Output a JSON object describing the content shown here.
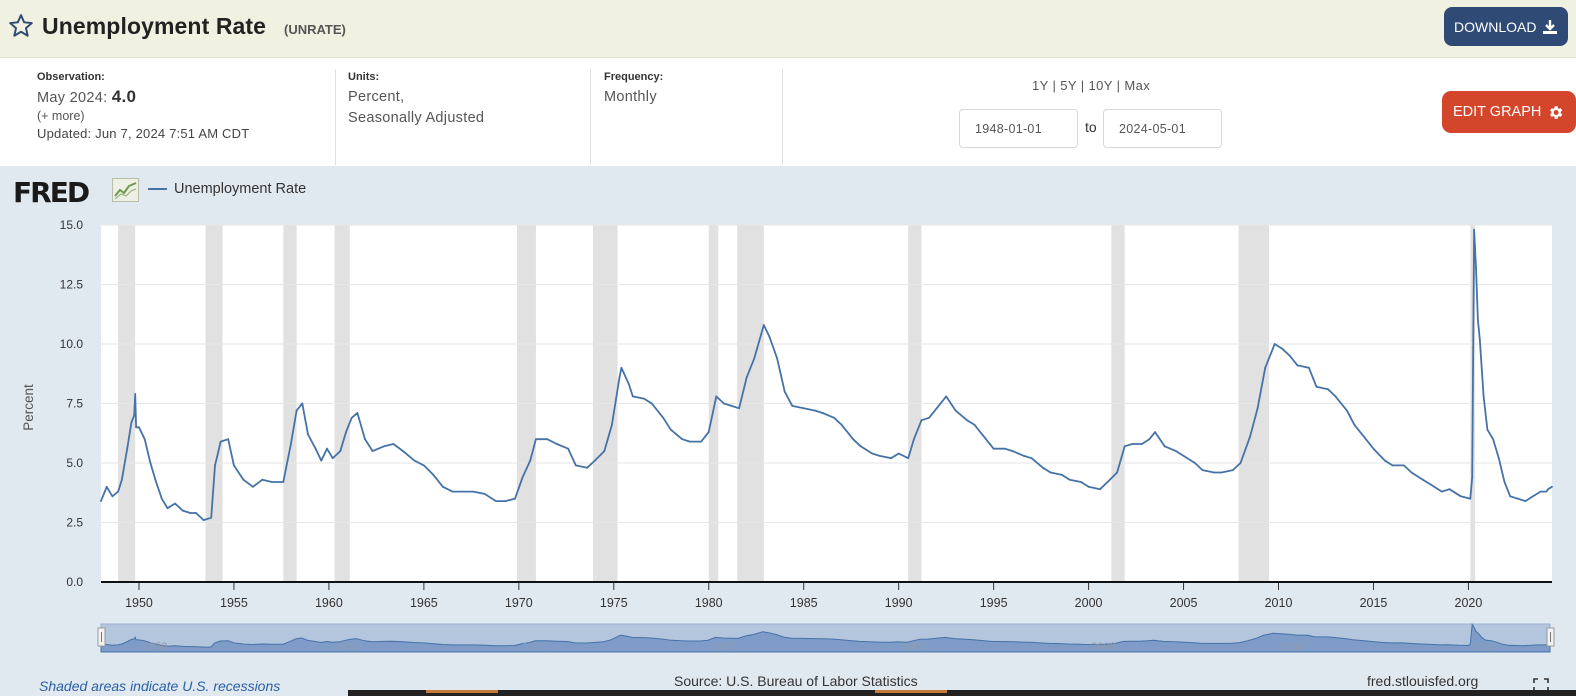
{
  "header": {
    "title": "Unemployment Rate",
    "series_id": "(UNRATE)",
    "download_label": "DOWNLOAD"
  },
  "meta": {
    "observation_label": "Observation:",
    "observation_date": "May 2024:",
    "observation_value": "4.0",
    "more_label": "(+ more)",
    "updated": "Updated: Jun 7, 2024 7:51 AM CDT",
    "units_label": "Units:",
    "units_line1": "Percent,",
    "units_line2": "Seasonally Adjusted",
    "frequency_label": "Frequency:",
    "frequency_value": "Monthly",
    "range_links": "1Y | 5Y | 10Y | Max",
    "date_from": "1948-01-01",
    "date_to_sep": "to",
    "date_to": "2024-05-01",
    "edit_label": "EDIT GRAPH"
  },
  "panel": {
    "logo": "FRED",
    "recession_note": "Shaded areas indicate U.S. recessions",
    "source": "Source: U.S. Bureau of Labor Statistics",
    "site": "fred.stlouisfed.org"
  },
  "colors": {
    "line": "#4572a7",
    "recession": "#e1e1e1",
    "panel_bg": "#e1e9f0",
    "download": "#2f4a75",
    "edit": "#d3462c"
  },
  "chart_data": {
    "type": "line",
    "title": "",
    "xlabel": "",
    "ylabel": "Percent",
    "ylim": [
      0,
      15
    ],
    "xlim": [
      1948,
      2024.4
    ],
    "yticks": [
      "0.0",
      "2.5",
      "5.0",
      "7.5",
      "10.0",
      "12.5",
      "15.0"
    ],
    "xticks": [
      "1950",
      "1955",
      "1960",
      "1965",
      "1970",
      "1975",
      "1980",
      "1985",
      "1990",
      "1995",
      "2000",
      "2005",
      "2010",
      "2015",
      "2020"
    ],
    "grid": true,
    "legend": "top-left",
    "recessions": [
      [
        1948.9,
        1949.8
      ],
      [
        1953.5,
        1954.4
      ],
      [
        1957.6,
        1958.3
      ],
      [
        1960.3,
        1961.1
      ],
      [
        1969.9,
        1970.9
      ],
      [
        1973.9,
        1975.2
      ],
      [
        1980.0,
        1980.5
      ],
      [
        1981.5,
        1982.9
      ],
      [
        1990.5,
        1991.2
      ],
      [
        2001.2,
        2001.9
      ],
      [
        2007.9,
        2009.5
      ],
      [
        2020.1,
        2020.35
      ]
    ],
    "series": [
      {
        "name": "Unemployment Rate",
        "points": [
          [
            1948.0,
            3.4
          ],
          [
            1948.3,
            4.0
          ],
          [
            1948.6,
            3.6
          ],
          [
            1948.9,
            3.8
          ],
          [
            1949.1,
            4.3
          ],
          [
            1949.4,
            5.7
          ],
          [
            1949.6,
            6.7
          ],
          [
            1949.75,
            7.0
          ],
          [
            1949.8,
            7.9
          ],
          [
            1949.85,
            6.5
          ],
          [
            1950.0,
            6.5
          ],
          [
            1950.3,
            6.0
          ],
          [
            1950.6,
            5.0
          ],
          [
            1950.9,
            4.2
          ],
          [
            1951.2,
            3.5
          ],
          [
            1951.5,
            3.1
          ],
          [
            1951.9,
            3.3
          ],
          [
            1952.3,
            3.0
          ],
          [
            1952.7,
            2.9
          ],
          [
            1953.0,
            2.9
          ],
          [
            1953.4,
            2.6
          ],
          [
            1953.8,
            2.7
          ],
          [
            1954.0,
            4.9
          ],
          [
            1954.3,
            5.9
          ],
          [
            1954.7,
            6.0
          ],
          [
            1955.0,
            4.9
          ],
          [
            1955.5,
            4.3
          ],
          [
            1956.0,
            4.0
          ],
          [
            1956.5,
            4.3
          ],
          [
            1957.0,
            4.2
          ],
          [
            1957.6,
            4.2
          ],
          [
            1958.0,
            5.8
          ],
          [
            1958.3,
            7.2
          ],
          [
            1958.6,
            7.5
          ],
          [
            1958.9,
            6.2
          ],
          [
            1959.3,
            5.6
          ],
          [
            1959.6,
            5.1
          ],
          [
            1959.9,
            5.6
          ],
          [
            1960.2,
            5.2
          ],
          [
            1960.6,
            5.5
          ],
          [
            1960.9,
            6.3
          ],
          [
            1961.2,
            6.9
          ],
          [
            1961.5,
            7.1
          ],
          [
            1961.9,
            6.0
          ],
          [
            1962.3,
            5.5
          ],
          [
            1962.9,
            5.7
          ],
          [
            1963.4,
            5.8
          ],
          [
            1963.9,
            5.5
          ],
          [
            1964.5,
            5.1
          ],
          [
            1965.0,
            4.9
          ],
          [
            1965.5,
            4.5
          ],
          [
            1966.0,
            4.0
          ],
          [
            1966.5,
            3.8
          ],
          [
            1967.0,
            3.8
          ],
          [
            1967.6,
            3.8
          ],
          [
            1968.2,
            3.7
          ],
          [
            1968.8,
            3.4
          ],
          [
            1969.3,
            3.4
          ],
          [
            1969.8,
            3.5
          ],
          [
            1970.2,
            4.4
          ],
          [
            1970.6,
            5.1
          ],
          [
            1970.9,
            6.0
          ],
          [
            1971.5,
            6.0
          ],
          [
            1972.0,
            5.8
          ],
          [
            1972.6,
            5.6
          ],
          [
            1973.0,
            4.9
          ],
          [
            1973.6,
            4.8
          ],
          [
            1974.0,
            5.1
          ],
          [
            1974.5,
            5.5
          ],
          [
            1974.9,
            6.6
          ],
          [
            1975.3,
            8.6
          ],
          [
            1975.4,
            9.0
          ],
          [
            1975.8,
            8.3
          ],
          [
            1976.0,
            7.8
          ],
          [
            1976.6,
            7.7
          ],
          [
            1977.0,
            7.5
          ],
          [
            1977.6,
            6.9
          ],
          [
            1978.0,
            6.4
          ],
          [
            1978.6,
            6.0
          ],
          [
            1979.0,
            5.9
          ],
          [
            1979.6,
            5.9
          ],
          [
            1980.0,
            6.3
          ],
          [
            1980.4,
            7.8
          ],
          [
            1980.8,
            7.5
          ],
          [
            1981.2,
            7.4
          ],
          [
            1981.6,
            7.3
          ],
          [
            1982.0,
            8.6
          ],
          [
            1982.4,
            9.4
          ],
          [
            1982.9,
            10.8
          ],
          [
            1983.2,
            10.3
          ],
          [
            1983.6,
            9.4
          ],
          [
            1984.0,
            8.0
          ],
          [
            1984.4,
            7.4
          ],
          [
            1985.0,
            7.3
          ],
          [
            1985.6,
            7.2
          ],
          [
            1986.0,
            7.1
          ],
          [
            1986.6,
            6.9
          ],
          [
            1987.0,
            6.6
          ],
          [
            1987.6,
            6.0
          ],
          [
            1988.0,
            5.7
          ],
          [
            1988.6,
            5.4
          ],
          [
            1989.0,
            5.3
          ],
          [
            1989.6,
            5.2
          ],
          [
            1990.0,
            5.4
          ],
          [
            1990.5,
            5.2
          ],
          [
            1990.8,
            6.0
          ],
          [
            1991.2,
            6.8
          ],
          [
            1991.6,
            6.9
          ],
          [
            1992.0,
            7.3
          ],
          [
            1992.5,
            7.8
          ],
          [
            1993.0,
            7.2
          ],
          [
            1993.6,
            6.8
          ],
          [
            1994.0,
            6.6
          ],
          [
            1994.6,
            6.0
          ],
          [
            1995.0,
            5.6
          ],
          [
            1995.6,
            5.6
          ],
          [
            1996.0,
            5.5
          ],
          [
            1996.6,
            5.3
          ],
          [
            1997.0,
            5.2
          ],
          [
            1997.6,
            4.8
          ],
          [
            1998.0,
            4.6
          ],
          [
            1998.6,
            4.5
          ],
          [
            1999.0,
            4.3
          ],
          [
            1999.6,
            4.2
          ],
          [
            2000.0,
            4.0
          ],
          [
            2000.6,
            3.9
          ],
          [
            2001.0,
            4.2
          ],
          [
            2001.5,
            4.6
          ],
          [
            2001.9,
            5.7
          ],
          [
            2002.3,
            5.8
          ],
          [
            2002.8,
            5.8
          ],
          [
            2003.2,
            6.0
          ],
          [
            2003.5,
            6.3
          ],
          [
            2004.0,
            5.7
          ],
          [
            2004.6,
            5.5
          ],
          [
            2005.0,
            5.3
          ],
          [
            2005.6,
            5.0
          ],
          [
            2006.0,
            4.7
          ],
          [
            2006.6,
            4.6
          ],
          [
            2007.0,
            4.6
          ],
          [
            2007.6,
            4.7
          ],
          [
            2008.0,
            5.0
          ],
          [
            2008.5,
            6.1
          ],
          [
            2008.9,
            7.3
          ],
          [
            2009.3,
            9.0
          ],
          [
            2009.8,
            10.0
          ],
          [
            2010.2,
            9.8
          ],
          [
            2010.6,
            9.5
          ],
          [
            2011.0,
            9.1
          ],
          [
            2011.6,
            9.0
          ],
          [
            2012.0,
            8.2
          ],
          [
            2012.6,
            8.1
          ],
          [
            2013.0,
            7.8
          ],
          [
            2013.6,
            7.2
          ],
          [
            2014.0,
            6.6
          ],
          [
            2014.6,
            6.0
          ],
          [
            2015.0,
            5.6
          ],
          [
            2015.6,
            5.1
          ],
          [
            2016.0,
            4.9
          ],
          [
            2016.6,
            4.9
          ],
          [
            2017.0,
            4.6
          ],
          [
            2017.6,
            4.3
          ],
          [
            2018.0,
            4.1
          ],
          [
            2018.6,
            3.8
          ],
          [
            2019.0,
            3.9
          ],
          [
            2019.6,
            3.6
          ],
          [
            2020.1,
            3.5
          ],
          [
            2020.2,
            4.4
          ],
          [
            2020.3,
            14.8
          ],
          [
            2020.4,
            13.2
          ],
          [
            2020.5,
            11.0
          ],
          [
            2020.6,
            10.2
          ],
          [
            2020.8,
            7.8
          ],
          [
            2021.0,
            6.4
          ],
          [
            2021.3,
            6.0
          ],
          [
            2021.6,
            5.2
          ],
          [
            2021.9,
            4.2
          ],
          [
            2022.2,
            3.6
          ],
          [
            2022.6,
            3.5
          ],
          [
            2023.0,
            3.4
          ],
          [
            2023.4,
            3.6
          ],
          [
            2023.8,
            3.8
          ],
          [
            2024.1,
            3.8
          ],
          [
            2024.2,
            3.9
          ],
          [
            2024.4,
            4.0
          ]
        ]
      }
    ]
  }
}
